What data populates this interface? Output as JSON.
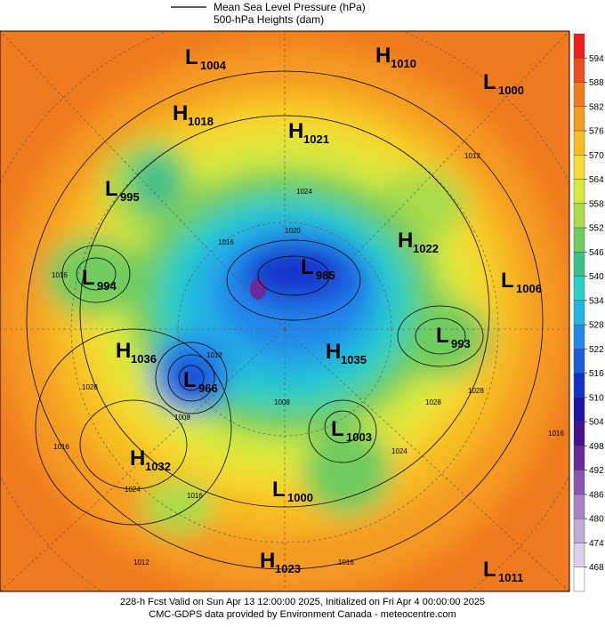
{
  "header": {
    "pressure_label": "Mean Sea Level Pressure (hPa)",
    "heights_label": "500-hPa Heights (dam)"
  },
  "systems": [
    {
      "letter": "L",
      "value": "1004"
    },
    {
      "letter": "H",
      "value": "1010"
    },
    {
      "letter": "L",
      "value": "1000"
    },
    {
      "letter": "H",
      "value": "1018"
    },
    {
      "letter": "H",
      "value": "1021"
    },
    {
      "letter": "L",
      "value": "995"
    },
    {
      "letter": "H",
      "value": "1022"
    },
    {
      "letter": "L",
      "value": "994"
    },
    {
      "letter": "L",
      "value": "985"
    },
    {
      "letter": "L",
      "value": "1006"
    },
    {
      "letter": "L",
      "value": "993"
    },
    {
      "letter": "H",
      "value": "1036"
    },
    {
      "letter": "H",
      "value": "1035"
    },
    {
      "letter": "L",
      "value": "966"
    },
    {
      "letter": "L",
      "value": "1003"
    },
    {
      "letter": "H",
      "value": "1032"
    },
    {
      "letter": "L",
      "value": "1000"
    },
    {
      "letter": "H",
      "value": "1023"
    },
    {
      "letter": "L",
      "value": "1011"
    }
  ],
  "contour_labels": [
    "1012",
    "1024",
    "1016",
    "1012",
    "1016",
    "1028",
    "1008",
    "1024",
    "1028",
    "1016",
    "1024",
    "1016",
    "1012",
    "1016",
    "1008",
    "1020",
    "1028",
    "1016"
  ],
  "colorbar": {
    "ticks": [
      594,
      588,
      582,
      576,
      570,
      564,
      558,
      552,
      546,
      540,
      534,
      528,
      522,
      516,
      510,
      504,
      498,
      492,
      486,
      480,
      474,
      468
    ],
    "colors": [
      "#ee1c1c",
      "#f04a1e",
      "#f07a1e",
      "#f59a22",
      "#f8bc24",
      "#f5dc30",
      "#d6ea3e",
      "#a8dc4a",
      "#6fcc5e",
      "#3cc08a",
      "#2ad0c4",
      "#22b4e2",
      "#2288ea",
      "#1c5ce2",
      "#1430c8",
      "#1a14a8",
      "#48108e",
      "#6a2a9c",
      "#8a56b0",
      "#a684c4",
      "#c2acd6",
      "#dcd0ea",
      "#ffffff"
    ]
  },
  "footer": {
    "forecast_line": "228-h Fcst Valid on Sun Apr 13 12:00:00 2025, Initialized on Fri Apr  4 00:00:00 2025",
    "credit_line": "CMC-GDPS data provided by Environment Canada - meteocentre.com"
  }
}
